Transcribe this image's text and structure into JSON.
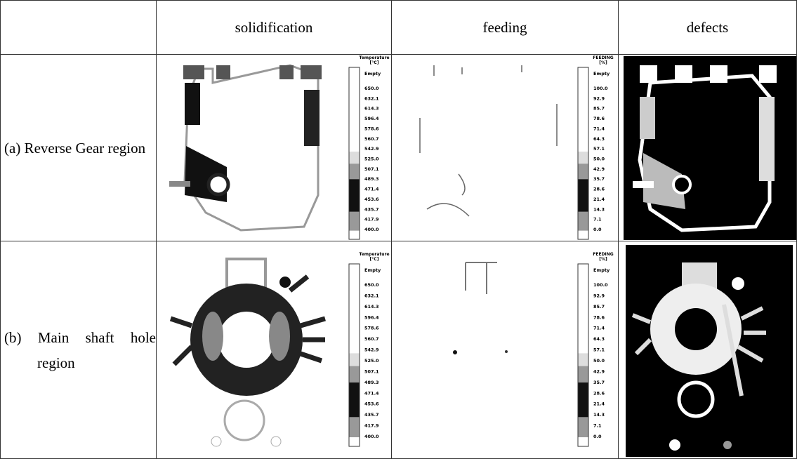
{
  "table": {
    "columns": [
      "solidification",
      "feeding",
      "defects"
    ],
    "rows": [
      {
        "label": "(a) Reverse Gear region"
      },
      {
        "label": "(b) Main shaft hole region"
      }
    ]
  },
  "legends": {
    "temperature": {
      "title": "Temperature",
      "unit": "[°C]",
      "labels": [
        "Empty",
        "650.0",
        "632.1",
        "614.3",
        "596.4",
        "578.6",
        "560.7",
        "542.9",
        "525.0",
        "507.1",
        "489.3",
        "471.4",
        "453.6",
        "435.7",
        "417.9",
        "400.0"
      ]
    },
    "feeding": {
      "title": "FEEDING",
      "unit": "[%]",
      "labels": [
        "Empty",
        "100.0",
        "92.9",
        "85.7",
        "78.6",
        "71.4",
        "64.3",
        "57.1",
        "50.0",
        "42.9",
        "35.7",
        "28.6",
        "21.4",
        "14.3",
        "7.1",
        "0.0"
      ]
    }
  }
}
